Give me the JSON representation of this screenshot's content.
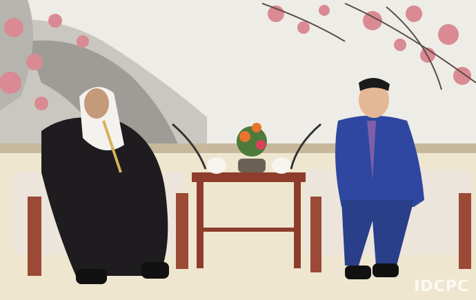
{
  "watermark": "IDCPC"
}
